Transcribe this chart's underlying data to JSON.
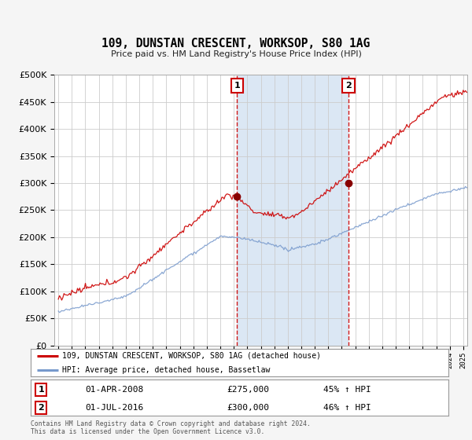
{
  "title": "109, DUNSTAN CRESCENT, WORKSOP, S80 1AG",
  "subtitle": "Price paid vs. HM Land Registry's House Price Index (HPI)",
  "footer": "Contains HM Land Registry data © Crown copyright and database right 2024.\nThis data is licensed under the Open Government Licence v3.0.",
  "legend_line1": "109, DUNSTAN CRESCENT, WORKSOP, S80 1AG (detached house)",
  "legend_line2": "HPI: Average price, detached house, Bassetlaw",
  "transaction1_date": "01-APR-2008",
  "transaction1_price": "£275,000",
  "transaction1_hpi": "45% ↑ HPI",
  "transaction2_date": "01-JUL-2016",
  "transaction2_price": "£300,000",
  "transaction2_hpi": "46% ↑ HPI",
  "red_color": "#cc0000",
  "blue_color": "#7799cc",
  "vline_color": "#cc0000",
  "shade_color": "#ccddf0",
  "plot_bg_color": "#ffffff",
  "ylim": [
    0,
    500000
  ],
  "yticks": [
    0,
    50000,
    100000,
    150000,
    200000,
    250000,
    300000,
    350000,
    400000,
    450000,
    500000
  ],
  "vline1_x": 2008.25,
  "vline2_x": 2016.5,
  "marker1_x": 2008.25,
  "marker1_y": 275000,
  "marker2_x": 2016.5,
  "marker2_y": 300000,
  "xmin": 1994.7,
  "xmax": 2025.3
}
